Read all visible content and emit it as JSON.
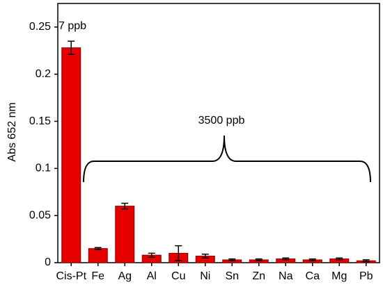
{
  "chart_data": {
    "type": "bar",
    "y_label": "Abs 652 nm",
    "categories": [
      "Cis-Pt",
      "Fe",
      "Ag",
      "Al",
      "Cu",
      "Ni",
      "Sn",
      "Zn",
      "Na",
      "Ca",
      "Mg",
      "Pb"
    ],
    "values": [
      0.228,
      0.015,
      0.06,
      0.008,
      0.01,
      0.007,
      0.003,
      0.003,
      0.004,
      0.003,
      0.004,
      0.002
    ],
    "errors": [
      0.007,
      0.001,
      0.003,
      0.002,
      0.008,
      0.002,
      0.001,
      0.001,
      0.001,
      0.001,
      0.001,
      0.001
    ],
    "color": "#e60000",
    "ylim": [
      0,
      0.275
    ],
    "yticks": [
      0,
      0.05,
      0.1,
      0.15,
      0.2,
      0.25
    ],
    "annotations": [
      "7 ppb",
      "3500 ppb"
    ]
  }
}
